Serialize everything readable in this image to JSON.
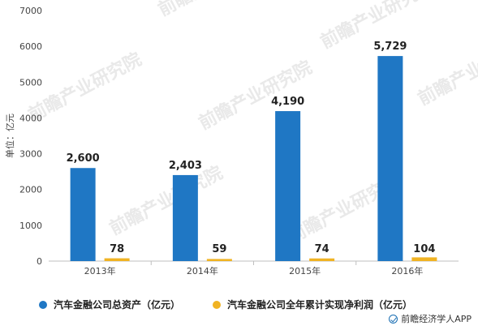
{
  "chart_data": {
    "type": "bar",
    "categories": [
      "2013年",
      "2014年",
      "2015年",
      "2016年"
    ],
    "series": [
      {
        "name": "汽车金融公司总资产（亿元）",
        "values": [
          2600,
          2403,
          4190,
          5729
        ],
        "labels": [
          "2,600",
          "2,403",
          "4,190",
          "5,729"
        ],
        "color": "#1f77c4"
      },
      {
        "name": "汽车金融公司全年累计实现净利润（亿元）",
        "values": [
          78,
          59,
          74,
          104
        ],
        "labels": [
          "78",
          "59",
          "74",
          "104"
        ],
        "color": "#f0b323"
      }
    ],
    "ylabel": "单位：亿元",
    "ylim": [
      0,
      7000
    ],
    "yticks": [
      0,
      1000,
      2000,
      3000,
      4000,
      5000,
      6000,
      7000
    ],
    "grid": false,
    "legend_position": "bottom"
  },
  "watermark_text": "前瞻产业研究院",
  "footer": {
    "source": "前瞻经济学人APP"
  }
}
